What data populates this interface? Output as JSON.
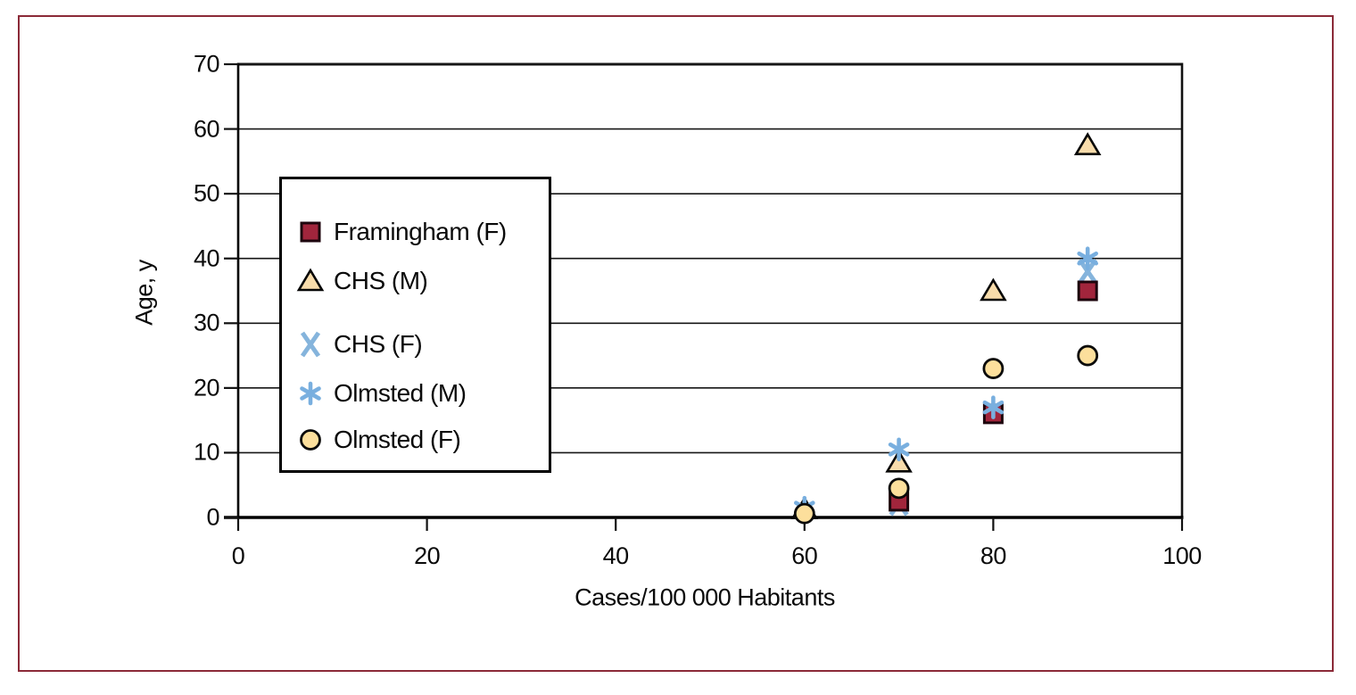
{
  "figure": {
    "frame_color": "#8b2a38",
    "background": "#ffffff"
  },
  "chart_data": {
    "type": "scatter",
    "title": "",
    "xlabel": "Cases/100 000 Habitants",
    "ylabel": "Age, y",
    "xlim": [
      0,
      100
    ],
    "ylim": [
      0,
      70
    ],
    "xticks": [
      0,
      20,
      40,
      60,
      80,
      100
    ],
    "yticks": [
      0,
      10,
      20,
      30,
      40,
      50,
      60,
      70
    ],
    "grid": "horizontal",
    "legend_position": "upper-left-inside",
    "series": [
      {
        "name": "Framingham (F)",
        "marker": "square",
        "fill": "#a1253c",
        "stroke": "#1d050d",
        "points": [
          [
            70,
            2.5
          ],
          [
            80,
            16
          ],
          [
            90,
            35
          ]
        ]
      },
      {
        "name": "CHS (M)",
        "marker": "triangle",
        "fill": "#f8dcab",
        "stroke": "#060606",
        "points": [
          [
            60,
            1.3
          ],
          [
            70,
            8.5
          ],
          [
            80,
            35
          ],
          [
            90,
            57.5
          ]
        ]
      },
      {
        "name": "CHS (F)",
        "marker": "x",
        "fill": "#85b4dc",
        "stroke": "#85b4dc",
        "points": [
          [
            70,
            2.2
          ],
          [
            90,
            38
          ]
        ]
      },
      {
        "name": "Olmsted (M)",
        "marker": "asterisk",
        "fill": "#79afdf",
        "stroke": "#79afdf",
        "points": [
          [
            60,
            1.5
          ],
          [
            70,
            10.5
          ],
          [
            80,
            17
          ],
          [
            90,
            40
          ]
        ]
      },
      {
        "name": "Olmsted (F)",
        "marker": "circle",
        "fill": "#fcdf9c",
        "stroke": "#0a0a0a",
        "points": [
          [
            60,
            0.6
          ],
          [
            70,
            4.5
          ],
          [
            80,
            23
          ],
          [
            90,
            25
          ]
        ]
      }
    ]
  }
}
